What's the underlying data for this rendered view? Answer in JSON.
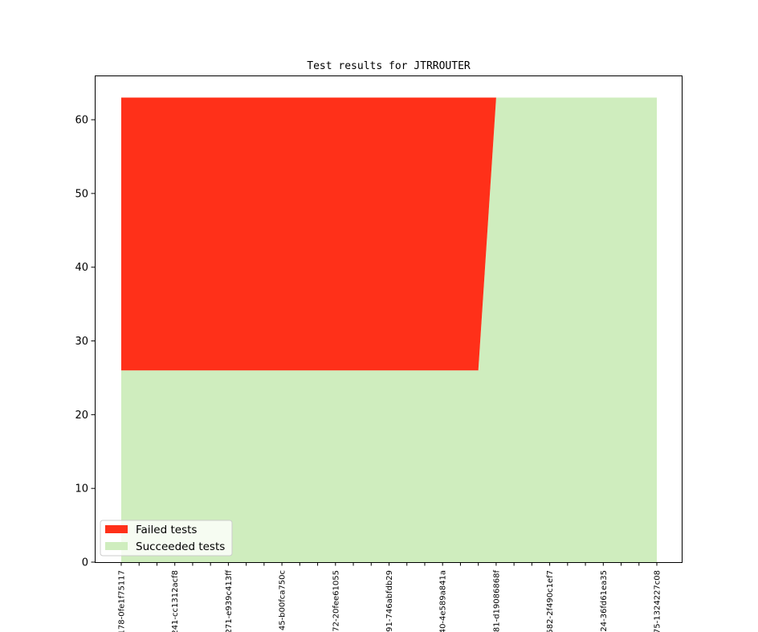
{
  "chart_data": {
    "type": "area",
    "stacked": true,
    "title": "Test results for JTRROUTER",
    "xlabel": "",
    "ylabel": "",
    "ylim": [
      0,
      66
    ],
    "yticks": [
      0,
      10,
      20,
      30,
      40,
      50,
      60
    ],
    "grid": false,
    "legend_position": "lower-left",
    "x_labels": [
      {
        "index": 0,
        "label": "178-0fe1f75117"
      },
      {
        "index": 3,
        "label": "241-cc1312acf8"
      },
      {
        "index": 6,
        "label": "271-e939c413ff"
      },
      {
        "index": 9,
        "label": "45-b00fca750c"
      },
      {
        "index": 12,
        "label": "72-20fee61055"
      },
      {
        "index": 15,
        "label": "91-746abfdb29"
      },
      {
        "index": 18,
        "label": "40-4e589a841a"
      },
      {
        "index": 21,
        "label": "81-d19086868f"
      },
      {
        "index": 24,
        "label": "582-2f490c1ef7"
      },
      {
        "index": 27,
        "label": "24-36fd61ea35"
      },
      {
        "index": 30,
        "label": "75-1324227c08"
      }
    ],
    "x_count": 31,
    "series": [
      {
        "name": "Succeeded tests",
        "color": "#cfedbe",
        "values": [
          26,
          26,
          26,
          26,
          26,
          26,
          26,
          26,
          26,
          26,
          26,
          26,
          26,
          26,
          26,
          26,
          26,
          26,
          26,
          26,
          26,
          63,
          63,
          63,
          63,
          63,
          63,
          63,
          63,
          63,
          63
        ]
      },
      {
        "name": "Failed tests",
        "color": "#ff3019",
        "values": [
          37,
          37,
          37,
          37,
          37,
          37,
          37,
          37,
          37,
          37,
          37,
          37,
          37,
          37,
          37,
          37,
          37,
          37,
          37,
          37,
          37,
          0,
          0,
          0,
          0,
          0,
          0,
          0,
          0,
          0,
          0
        ]
      }
    ]
  }
}
